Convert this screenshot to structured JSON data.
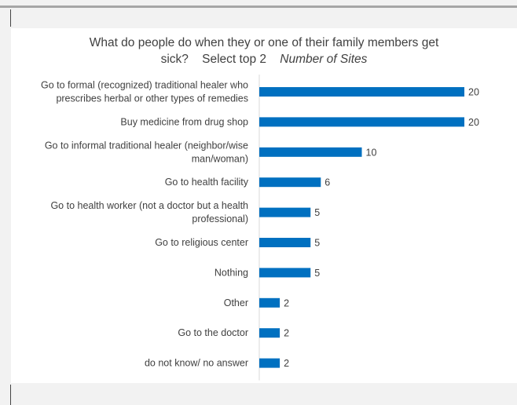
{
  "chart_data": {
    "type": "bar",
    "orientation": "horizontal",
    "title_line1": "What do people do when they or one of their family members get",
    "title_line2_main": "sick?",
    "title_line2_select": "Select top 2",
    "title_line2_italic": "Number of Sites",
    "categories": [
      [
        "Go to formal (recognized) traditional healer who",
        "prescribes herbal or other types of remedies"
      ],
      [
        "Buy medicine from drug shop"
      ],
      [
        "Go to informal traditional healer (neighbor/wise",
        "man/woman)"
      ],
      [
        "Go to health facility"
      ],
      [
        "Go to health worker (not a doctor but a health",
        "professional)"
      ],
      [
        "Go to religious center"
      ],
      [
        "Nothing"
      ],
      [
        "Other"
      ],
      [
        "Go to the doctor"
      ],
      [
        "do not know/ no answer"
      ]
    ],
    "values": [
      20,
      20,
      10,
      6,
      5,
      5,
      5,
      2,
      2,
      2
    ],
    "xlim": [
      0,
      20
    ],
    "bar_color": "#0070C0",
    "grid": false,
    "legend": false
  }
}
